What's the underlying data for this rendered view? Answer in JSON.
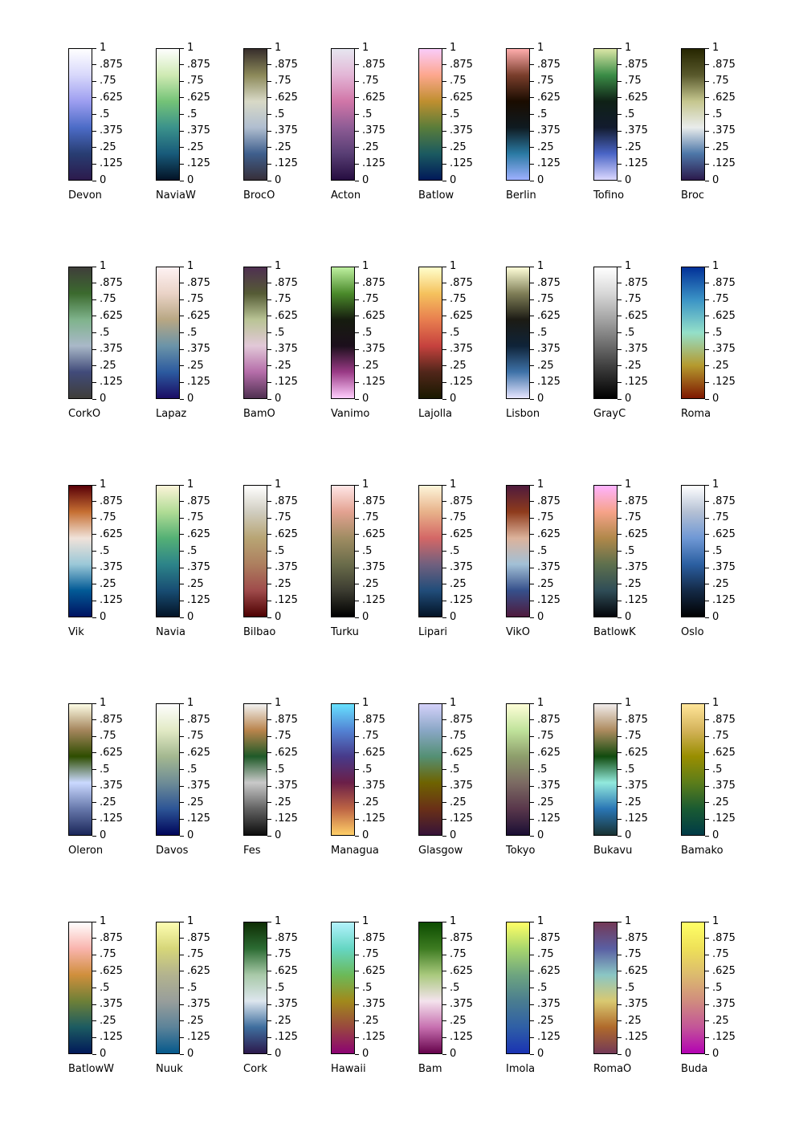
{
  "chart_data": {
    "type": "colorbar-grid",
    "value_range": [
      0,
      1
    ],
    "tick_labels": [
      "0",
      ".125",
      ".25",
      ".375",
      ".5",
      ".625",
      ".75",
      ".875",
      "1"
    ],
    "colormaps": [
      {
        "name": "Devon",
        "colors": [
          "#2c1a4c",
          "#283d72",
          "#4c6cc7",
          "#9d9ef0",
          "#d8d8fb",
          "#ffffff"
        ]
      },
      {
        "name": "NaviaW",
        "colors": [
          "#031326",
          "#185a7a",
          "#3b928b",
          "#74c377",
          "#cfeab3",
          "#fefefe"
        ]
      },
      {
        "name": "BrocO",
        "colors": [
          "#372f39",
          "#3f5f8d",
          "#b0bed0",
          "#d8d9c6",
          "#8c8959",
          "#372e2b"
        ]
      },
      {
        "name": "Acton",
        "colors": [
          "#260d40",
          "#583e74",
          "#8e5c95",
          "#d176a8",
          "#e3b6d6",
          "#e6e6f0"
        ]
      },
      {
        "name": "Batlow",
        "colors": [
          "#011959",
          "#1b5a60",
          "#5a7d3a",
          "#bf8f2f",
          "#fda78d",
          "#faccfa"
        ]
      },
      {
        "name": "Berlin",
        "colors": [
          "#9eb0ff",
          "#2a7aa3",
          "#0f1a20",
          "#1a0c00",
          "#7a3e2c",
          "#ffadad"
        ]
      },
      {
        "name": "Tofino",
        "colors": [
          "#dbd8ff",
          "#4a65c6",
          "#121b2e",
          "#0f2116",
          "#3a8c46",
          "#dbe6a6"
        ]
      },
      {
        "name": "Broc",
        "colors": [
          "#2c1a4c",
          "#4d77a8",
          "#e9ecec",
          "#c5c68e",
          "#59592c",
          "#262600"
        ]
      },
      {
        "name": "CorkO",
        "colors": [
          "#3f3e3a",
          "#414b7a",
          "#a9b8c8",
          "#7fb38c",
          "#3b6a2e",
          "#3f3e3a"
        ]
      },
      {
        "name": "Lapaz",
        "colors": [
          "#1a0c64",
          "#2c5a9f",
          "#6b94a8",
          "#b8a783",
          "#ead3c7",
          "#fef2f3"
        ]
      },
      {
        "name": "BamO",
        "colors": [
          "#4f3051",
          "#b56da9",
          "#e2c8d8",
          "#b9c495",
          "#555b35",
          "#4f3051"
        ]
      },
      {
        "name": "Vanimo",
        "colors": [
          "#ffcdfd",
          "#9a3a86",
          "#1c0f1c",
          "#161c0f",
          "#4a8a2a",
          "#bef0a0"
        ]
      },
      {
        "name": "Lajolla",
        "colors": [
          "#191900",
          "#51261a",
          "#c6423e",
          "#e87e4f",
          "#f5c25d",
          "#ffffcc"
        ]
      },
      {
        "name": "Lisbon",
        "colors": [
          "#e6e5ff",
          "#3e72a8",
          "#0f2338",
          "#1c1b14",
          "#7f7e57",
          "#ffffd9"
        ]
      },
      {
        "name": "GrayC",
        "colors": [
          "#000000",
          "#333333",
          "#6b6b6b",
          "#a3a3a3",
          "#d7d7d7",
          "#ffffff"
        ]
      },
      {
        "name": "Roma",
        "colors": [
          "#7e1700",
          "#b59a2e",
          "#94e0c9",
          "#3b94c6",
          "#023198"
        ]
      },
      {
        "name": "Vik",
        "colors": [
          "#001261",
          "#025a96",
          "#9bc8d8",
          "#f0e2d9",
          "#c66f32",
          "#590008"
        ]
      },
      {
        "name": "Navia",
        "colors": [
          "#031326",
          "#184d73",
          "#2d8489",
          "#54b075",
          "#b0dc95",
          "#fcf4d9"
        ]
      },
      {
        "name": "Bilbao",
        "colors": [
          "#4d0001",
          "#9f4b4b",
          "#ad7f5f",
          "#b8a574",
          "#d0cdc0",
          "#ffffff"
        ]
      },
      {
        "name": "Turku",
        "colors": [
          "#000000",
          "#3c3c31",
          "#6a6c4a",
          "#9f8c62",
          "#e3a291",
          "#ffe6e6"
        ]
      },
      {
        "name": "Lipari",
        "colors": [
          "#031326",
          "#214d7a",
          "#71607e",
          "#d46766",
          "#e8b28a",
          "#fdf5da"
        ]
      },
      {
        "name": "VikO",
        "colors": [
          "#4f1a3d",
          "#36508b",
          "#a2c0d6",
          "#dcb29b",
          "#8e3b1c",
          "#4f1a3d"
        ]
      },
      {
        "name": "BatlowK",
        "colors": [
          "#04050a",
          "#2f4d57",
          "#5e704d",
          "#b0884a",
          "#f6a389",
          "#ffb3ff"
        ]
      },
      {
        "name": "Oslo",
        "colors": [
          "#010101",
          "#142a47",
          "#2b5fa1",
          "#6f98d5",
          "#b4c0d4",
          "#ffffff"
        ]
      },
      {
        "name": "Oleron",
        "colors": [
          "#1a2659",
          "#6778ab",
          "#cad9ff",
          "#2e4d00",
          "#a4855c",
          "#fdfde6"
        ]
      },
      {
        "name": "Davos",
        "colors": [
          "#00055a",
          "#2d5596",
          "#6e8c96",
          "#a4b890",
          "#e2eac5",
          "#fefefe"
        ]
      },
      {
        "name": "Fes",
        "colors": [
          "#0d0d0d",
          "#626262",
          "#c9c9c9",
          "#1f5a28",
          "#b9844c",
          "#f2f2f2"
        ]
      },
      {
        "name": "Managua",
        "colors": [
          "#ffcf68",
          "#bd6444",
          "#6b1f48",
          "#473a8a",
          "#5383d4",
          "#67e1ff"
        ]
      },
      {
        "name": "Glasgow",
        "colors": [
          "#361338",
          "#6a3017",
          "#6e6300",
          "#549074",
          "#8aa7c6",
          "#d4d1fa"
        ]
      },
      {
        "name": "Tokyo",
        "colors": [
          "#1a0e34",
          "#59374b",
          "#7c6b63",
          "#8e9e6c",
          "#c0e39b",
          "#fefed8"
        ]
      },
      {
        "name": "Bukavu",
        "colors": [
          "#193333",
          "#2a76b5",
          "#92e9dd",
          "#114b0e",
          "#ad8b5f",
          "#f1ecec"
        ]
      },
      {
        "name": "Bamako",
        "colors": [
          "#003b47",
          "#1a5b32",
          "#5c7d1a",
          "#998e00",
          "#d4b35a",
          "#ffe599"
        ]
      },
      {
        "name": "BatlowW",
        "colors": [
          "#011959",
          "#1c5b61",
          "#6e8037",
          "#d08f3c",
          "#f9b4ad",
          "#fffefe"
        ]
      },
      {
        "name": "Nuuk",
        "colors": [
          "#05598c",
          "#5c8399",
          "#989e9b",
          "#b3b38e",
          "#d6d679",
          "#fefeb2"
        ]
      },
      {
        "name": "Cork",
        "colors": [
          "#2c194c",
          "#3f6e9e",
          "#dde6ee",
          "#a8c9a8",
          "#2c6c33",
          "#0e2d04"
        ]
      },
      {
        "name": "Hawaii",
        "colors": [
          "#8c0273",
          "#99483e",
          "#a1891b",
          "#6bba59",
          "#65d6c3",
          "#b3f2fd"
        ]
      },
      {
        "name": "Bam",
        "colors": [
          "#65024b",
          "#c770b0",
          "#f4e3ed",
          "#a9c97d",
          "#3d7b21",
          "#0c4c00"
        ]
      },
      {
        "name": "Imola",
        "colors": [
          "#1a33b3",
          "#2f5fa6",
          "#4a7d90",
          "#6ea57f",
          "#a8d66d",
          "#ffff66"
        ]
      },
      {
        "name": "RomaO",
        "colors": [
          "#733957",
          "#b06a2b",
          "#d9c971",
          "#8ac6c4",
          "#5a5fa3",
          "#733957"
        ]
      },
      {
        "name": "Buda",
        "colors": [
          "#b301b3",
          "#c35598",
          "#d08c7e",
          "#dcbb6e",
          "#eee058",
          "#ffff66"
        ]
      }
    ]
  }
}
